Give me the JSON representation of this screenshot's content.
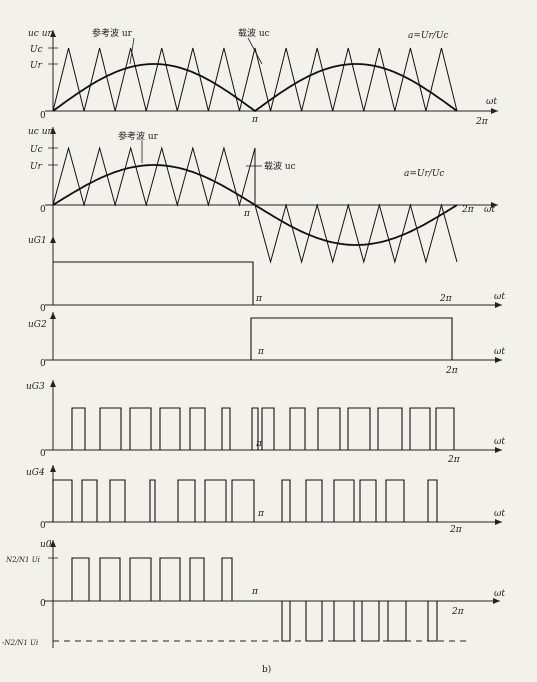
{
  "figure": {
    "caption": "b)",
    "omega_t": "ωt",
    "pi": "π",
    "two_pi": "2π",
    "zero": "0"
  },
  "panel1": {
    "yaxis_label": "uc ur",
    "ref_label": "参考波 ur",
    "carrier_label": "载波 uc",
    "uc_tick": "Uc",
    "ur_tick": "Ur",
    "ratio_label": "a=Ur/Uc"
  },
  "panel2": {
    "yaxis_label": "uc ur",
    "ref_label": "参考波 ur",
    "carrier_label": "载波 uc",
    "uc_tick": "Uc",
    "ur_tick": "Ur",
    "ratio_label": "a=Ur/Uc"
  },
  "panel3": {
    "yaxis_label": "uG1"
  },
  "panel4": {
    "yaxis_label": "uG2"
  },
  "panel5": {
    "yaxis_label": "uG3"
  },
  "panel6": {
    "yaxis_label": "uG4"
  },
  "panel7": {
    "yaxis_label": "u0",
    "pos_level": "N2/N1 Ui",
    "neg_level": "-N2/N1 Ui"
  },
  "colors": {
    "ink": "#111111",
    "paper": "#f3f1ec"
  }
}
